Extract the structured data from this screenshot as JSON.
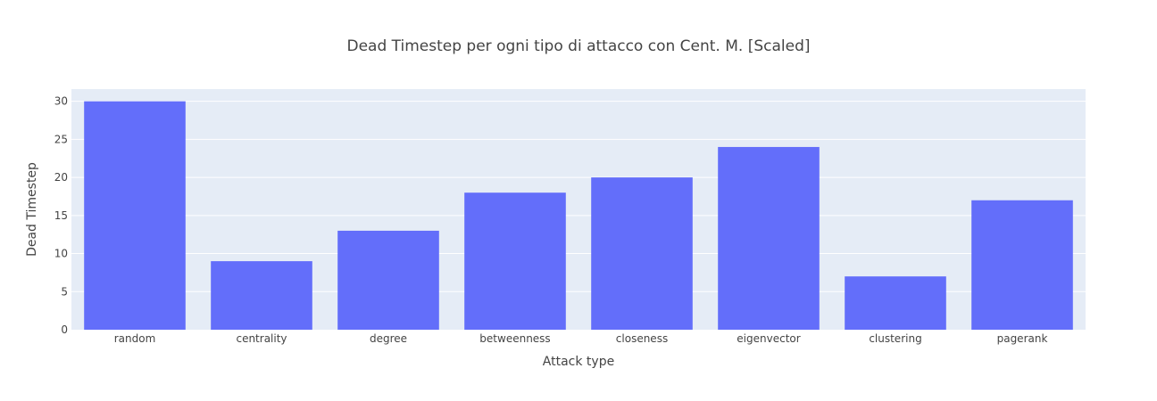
{
  "chart_data": {
    "type": "bar",
    "title": "Dead Timestep per ogni tipo di attacco con Cent. M. [Scaled]",
    "xlabel": "Attack type",
    "ylabel": "Dead Timestep",
    "categories": [
      "random",
      "centrality",
      "degree",
      "betweenness",
      "closeness",
      "eigenvector",
      "clustering",
      "pagerank"
    ],
    "values": [
      30,
      9,
      13,
      18,
      20,
      24,
      7,
      17
    ],
    "ylim": [
      0,
      31.6
    ],
    "yticks": [
      0,
      5,
      10,
      15,
      20,
      25,
      30
    ],
    "grid": true,
    "bar_color": "#636efa",
    "plot_bg": "#e5ecf6"
  }
}
